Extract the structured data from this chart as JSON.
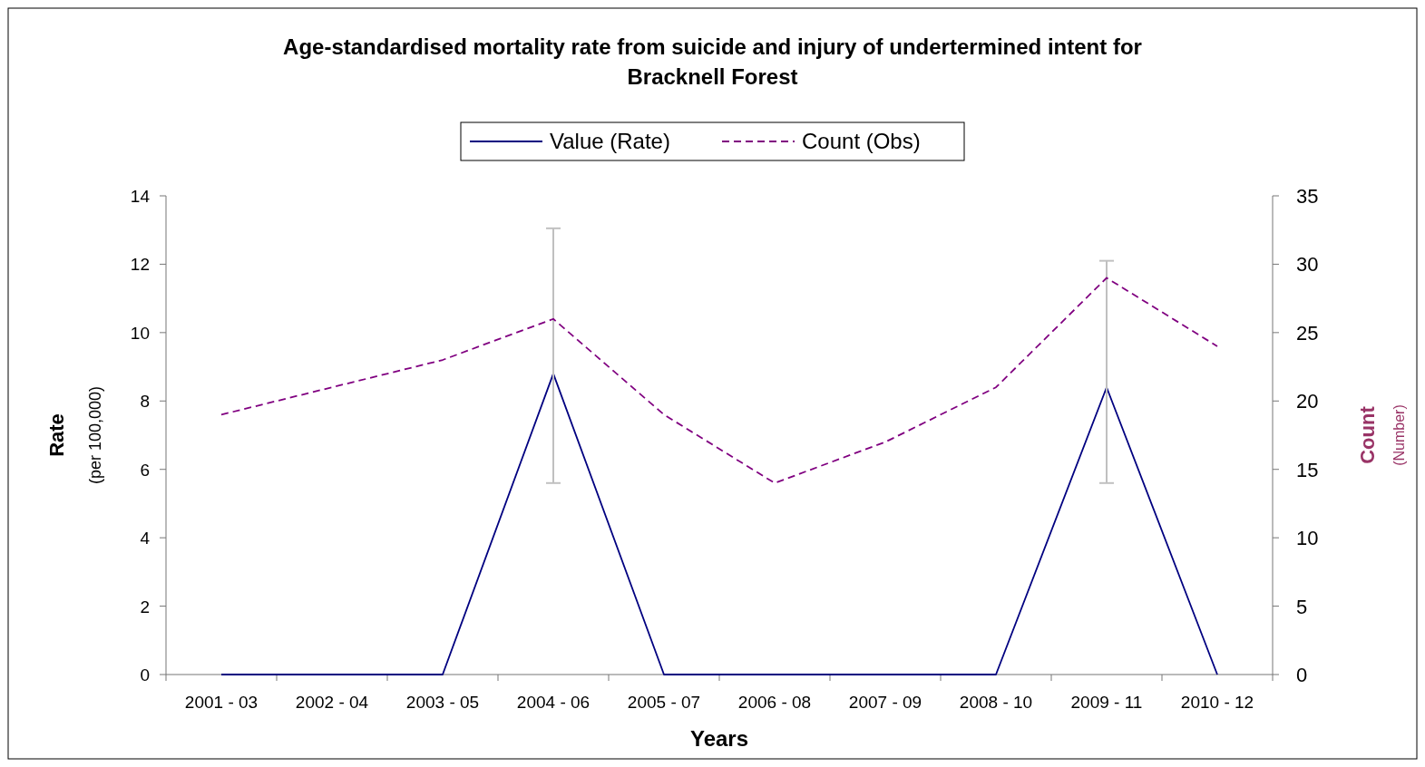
{
  "chart_data": {
    "type": "line",
    "title": "Age-standardised mortality rate from suicide and injury of undertermined intent for\nBracknell Forest",
    "xlabel": "Years",
    "ylabel": "Rate\n(per 100,000)",
    "y2label": "Count\n(Number)",
    "categories": [
      "2001 - 03",
      "2002 - 04",
      "2003 - 05",
      "2004 - 06",
      "2005 - 07",
      "2006 - 08",
      "2007 - 09",
      "2008 - 10",
      "2009 - 11",
      "2010 - 12"
    ],
    "series": [
      {
        "name": "Value (Rate)",
        "color": "#000080",
        "line_style": "solid",
        "values": [
          0,
          0,
          0,
          8.8,
          0,
          0,
          0,
          0,
          8.4,
          0
        ],
        "errors": [
          null,
          null,
          null,
          [
            5.6,
            13.05
          ],
          null,
          null,
          null,
          null,
          [
            5.6,
            12.1
          ],
          null
        ]
      },
      {
        "name": "Count (Obs)",
        "color": "#800080",
        "line_style": "dashed",
        "axis": "y2",
        "values": [
          19,
          21,
          23,
          26,
          19,
          14,
          17,
          21,
          29,
          24
        ]
      }
    ],
    "ylim": [
      0,
      14
    ],
    "yticks": [
      0,
      2,
      4,
      6,
      8,
      10,
      12,
      14
    ],
    "y2lim": [
      0,
      35
    ],
    "y2ticks": [
      0,
      5,
      10,
      15,
      20,
      25,
      30,
      35
    ],
    "legend": "top",
    "grid": false
  }
}
